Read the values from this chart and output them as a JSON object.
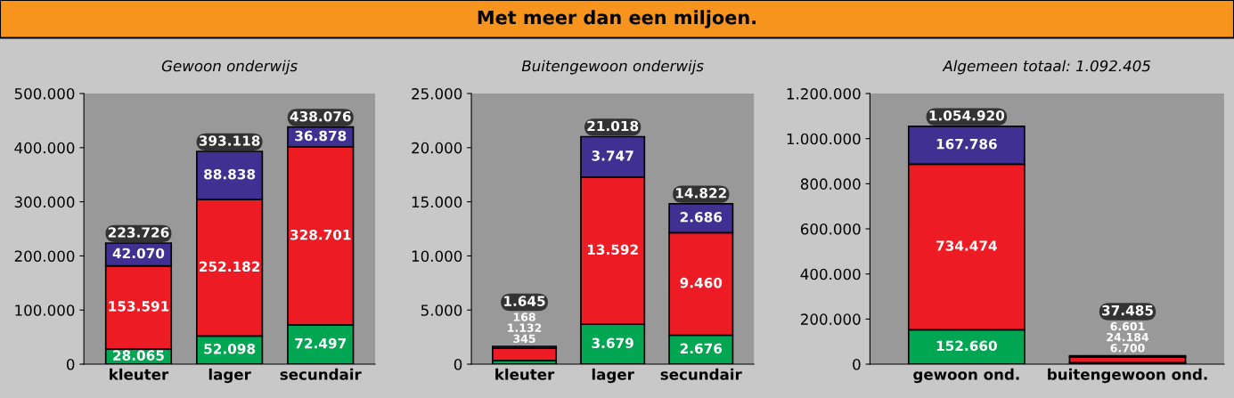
{
  "chart_data": [
    {
      "type": "bar",
      "subtitle": "Gewoon onderwijs",
      "stacked": true,
      "categories": [
        "kleuter",
        "lager",
        "secundair"
      ],
      "series": [
        {
          "color": "#00a651",
          "values": [
            28065,
            52098,
            72497
          ],
          "value_labels": [
            "28.065",
            "52.098",
            "72.497"
          ]
        },
        {
          "color": "#ed1c24",
          "values": [
            153591,
            252182,
            328701
          ],
          "value_labels": [
            "153.591",
            "252.182",
            "328.701"
          ]
        },
        {
          "color": "#3f3092",
          "values": [
            42070,
            88838,
            36878
          ],
          "value_labels": [
            "42.070",
            "88.838",
            "36.878"
          ]
        }
      ],
      "totals": [
        "223.726",
        "393.118",
        "438.076"
      ],
      "ylim": [
        0,
        500000
      ],
      "yticks": [
        0,
        {
          "value": 100000,
          "label": "100.000"
        },
        {
          "value": 200000,
          "label": "200.000"
        },
        {
          "value": 300000,
          "label": "300.000"
        },
        {
          "value": 400000,
          "label": "400.000"
        },
        {
          "value": 500000,
          "label": "500.000"
        }
      ],
      "grid": false,
      "legend": false
    },
    {
      "type": "bar",
      "title": "Met meer dan een miljoen.",
      "subtitle": "Buitengewoon onderwijs",
      "stacked": true,
      "categories": [
        "kleuter",
        "lager",
        "secundair"
      ],
      "series": [
        {
          "color": "#00a651",
          "values": [
            345,
            3679,
            2676
          ],
          "value_labels": [
            "345",
            "3.679",
            "2.676"
          ]
        },
        {
          "color": "#ed1c24",
          "values": [
            1132,
            13592,
            9460
          ],
          "value_labels": [
            "1.132",
            "13.592",
            "9.460"
          ]
        },
        {
          "color": "#3f3092",
          "values": [
            168,
            3747,
            2686
          ],
          "value_labels": [
            "168",
            "3.747",
            "2.686"
          ]
        }
      ],
      "totals": [
        "1.645",
        "21.018",
        "14.822"
      ],
      "ylim": [
        0,
        25000
      ],
      "yticks": [
        0,
        {
          "value": 5000,
          "label": "5.000"
        },
        {
          "value": 10000,
          "label": "10.000"
        },
        {
          "value": 15000,
          "label": "15.000"
        },
        {
          "value": 20000,
          "label": "20.000"
        },
        {
          "value": 25000,
          "label": "25.000"
        }
      ],
      "grid": false,
      "legend": false
    },
    {
      "type": "bar",
      "subtitle": "Algemeen totaal: 1.092.405",
      "stacked": true,
      "categories": [
        "gewoon ond.",
        "buitengewoon ond."
      ],
      "series": [
        {
          "color": "#00a651",
          "values": [
            152660,
            6700
          ],
          "value_labels": [
            "152.660",
            "6.700"
          ]
        },
        {
          "color": "#ed1c24",
          "values": [
            734474,
            24184
          ],
          "value_labels": [
            "734.474",
            "24.184"
          ]
        },
        {
          "color": "#3f3092",
          "values": [
            167786,
            6601
          ],
          "value_labels": [
            "167.786",
            "6.601"
          ]
        }
      ],
      "totals": [
        "1.054.920",
        "37.485"
      ],
      "ylim": [
        0,
        1200000
      ],
      "yticks": [
        0,
        {
          "value": 200000,
          "label": "200.000"
        },
        {
          "value": 400000,
          "label": "400.000"
        },
        {
          "value": 600000,
          "label": "600.000"
        },
        {
          "value": 800000,
          "label": "800.000"
        },
        {
          "value": 1000000,
          "label": "1.000.000"
        },
        {
          "value": 1200000,
          "label": "1.200.000"
        }
      ],
      "grid": false,
      "legend": false
    }
  ]
}
